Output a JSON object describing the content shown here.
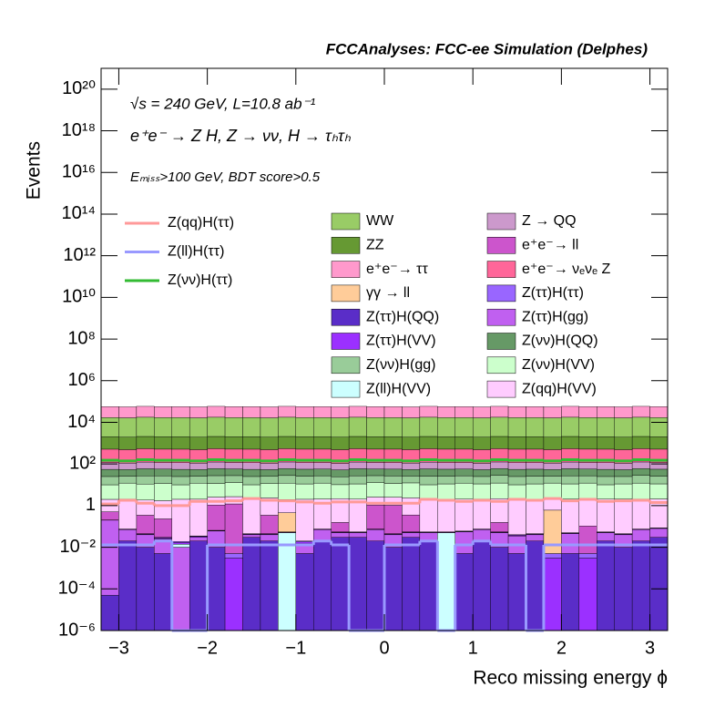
{
  "chart_data": {
    "type": "stacked_histogram",
    "title": "FCCAnalyses: FCC-ee Simulation (Delphes)",
    "annotations": [
      "√s = 240 GeV, L=10.8 ab⁻¹",
      "e⁺e⁻ → Z H, Z → νν, H → τₕτₕ",
      "Eₘᵢₛₛ>100 GeV, BDT score>0.5"
    ],
    "xlabel": "Reco missing energy ϕ",
    "ylabel": "Events",
    "log_y": true,
    "xlim": [
      -3.2,
      3.2
    ],
    "ylim": [
      1e-06,
      1e+21
    ],
    "xticks": [
      {
        "value": -3,
        "label": "−3"
      },
      {
        "value": -2,
        "label": "−2"
      },
      {
        "value": -1,
        "label": "−1"
      },
      0,
      1,
      2,
      3
    ],
    "yticks": [
      {
        "value": 1e-06,
        "label": "10⁻⁶"
      },
      {
        "value": 0.0001,
        "label": "10⁻⁴"
      },
      {
        "value": 0.01,
        "label": "10⁻²"
      },
      1,
      {
        "value": 100.0,
        "label": "10²"
      },
      {
        "value": 10000.0,
        "label": "10⁴"
      },
      {
        "value": 1000000.0,
        "label": "10⁶"
      },
      {
        "value": 100000000.0,
        "label": "10⁸"
      },
      {
        "value": 10000000000.0,
        "label": "10¹⁰"
      },
      {
        "value": 1000000000000.0,
        "label": "10¹²"
      },
      {
        "value": 100000000000000.0,
        "label": "10¹⁴"
      },
      {
        "value": 1e+16,
        "label": "10¹⁶"
      },
      {
        "value": 1e+18,
        "label": "10¹⁸"
      },
      {
        "value": 1e+20,
        "label": "10²⁰"
      }
    ],
    "bins": [
      -3.2,
      -3.0,
      -2.8,
      -2.6,
      -2.4,
      -2.2,
      -2.0,
      -1.8,
      -1.6,
      -1.4,
      -1.2,
      -1.0,
      -0.8,
      -0.6,
      -0.4,
      -0.2,
      0,
      0.2,
      0.4,
      0.6,
      0.8,
      1.0,
      1.2,
      1.4,
      1.6,
      1.8,
      2.0,
      2.2,
      2.4,
      2.6,
      2.8,
      3.0,
      3.2
    ],
    "series": [
      {
        "name": "Z(ττ)H(QQ)",
        "color": "#5a2dc8",
        "values": [
          5e-05,
          0.02,
          0.01,
          0.005,
          0,
          0.02,
          0.01,
          0,
          0.03,
          0.02,
          0,
          0.005,
          0.02,
          0.03,
          0.03,
          0.02,
          0.01,
          0.03,
          0.02,
          0,
          0.005,
          0.02,
          0.01,
          0.005,
          0.02,
          0,
          0.005,
          0,
          0.02,
          0.01,
          0.02,
          0.03
        ]
      },
      {
        "name": "Z(ττ)H(gg)",
        "color": "#c060f0",
        "values": [
          0.2,
          0.05,
          0.03,
          0.02,
          0.01,
          0.01,
          0.05,
          0,
          0.01,
          0.02,
          0,
          0.01,
          0.05,
          0.02,
          0.02,
          0.05,
          0.03,
          0.02,
          0.03,
          0,
          0.05,
          0.05,
          0.04,
          0.03,
          0.02,
          0,
          0.04,
          0,
          0.03,
          0.03,
          0.05,
          0.05
        ]
      },
      {
        "name": "Z(ll)H(VV)",
        "color": "#ccffff",
        "values": [
          0,
          0,
          0,
          0,
          0.004,
          0,
          0,
          0,
          0,
          0,
          0.05,
          0,
          0,
          0,
          0,
          0,
          0,
          0,
          0,
          0.05,
          0,
          0,
          0,
          0,
          0,
          0,
          0,
          0,
          0,
          0,
          0,
          0
        ]
      },
      {
        "name": "Z(ττ)H(VV)",
        "color": "#9b30ff",
        "values": [
          0.003,
          0.003,
          0.003,
          0.003,
          0.003,
          0.003,
          0.003,
          0.003,
          0.003,
          0.003,
          0.003,
          0.003,
          0.003,
          0.003,
          0.003,
          0.003,
          0.003,
          0.003,
          0.003,
          0.003,
          0.003,
          0.003,
          0.003,
          0.003,
          0.003,
          0.003,
          0.003,
          0.003,
          0.003,
          0.003,
          0.003,
          0.003
        ]
      },
      {
        "name": "Z(ττ)H(ττ)",
        "color": "#9966ff",
        "values": [
          0.002,
          0.002,
          0.002,
          0.002,
          0.002,
          0.002,
          0.002,
          0.002,
          0.002,
          0.002,
          0.002,
          0.002,
          0.002,
          0.002,
          0.002,
          0.002,
          0.002,
          0.002,
          0.002,
          0.002,
          0.002,
          0.002,
          0.002,
          0.002,
          0.002,
          0.002,
          0.002,
          0.002,
          0.002,
          0.002,
          0.002,
          0.002
        ]
      },
      {
        "name": "γγ → ll",
        "color": "#ffcc99",
        "values": [
          0,
          0,
          0,
          0,
          0,
          0,
          0,
          0,
          0,
          0,
          0.4,
          0,
          0,
          0,
          0,
          0,
          0,
          0,
          0,
          0,
          0,
          0,
          0,
          0,
          0,
          0.6,
          0,
          0,
          0,
          0,
          0,
          0
        ]
      },
      {
        "name": "e⁺e⁻→ ll",
        "color": "#cc55cc",
        "values": [
          0.3,
          0,
          0.3,
          0.2,
          0,
          0,
          1,
          1.2,
          0,
          0.3,
          0,
          0,
          0,
          0.1,
          0,
          1,
          1,
          0.3,
          0,
          0,
          0,
          0,
          0.1,
          0,
          0,
          0,
          0,
          0.1,
          0,
          0,
          0,
          0
        ]
      },
      {
        "name": "Z(qq)H(VV)",
        "color": "#ffccff",
        "values": [
          1.5,
          2,
          1.5,
          1.5,
          2,
          2,
          1.5,
          1.5,
          2,
          2,
          1.5,
          2,
          2,
          2,
          2,
          1.5,
          1.5,
          2,
          2,
          2,
          2,
          2,
          2,
          2,
          2,
          1.5,
          2,
          2,
          2,
          2,
          2,
          2
        ]
      },
      {
        "name": "Z(νν)H(VV)",
        "color": "#ccffcc",
        "values": [
          8,
          10,
          9,
          10,
          8,
          10,
          9,
          10,
          8,
          9,
          10,
          9,
          10,
          8,
          9,
          10,
          9,
          10,
          8,
          9,
          10,
          9,
          10,
          8,
          9,
          10,
          9,
          10,
          8,
          9,
          10,
          9
        ]
      },
      {
        "name": "Z(νν)H(gg)",
        "color": "#99cc99",
        "values": [
          15,
          14,
          16,
          15,
          15,
          14,
          16,
          15,
          15,
          14,
          16,
          15,
          15,
          14,
          16,
          15,
          15,
          14,
          16,
          15,
          15,
          14,
          16,
          15,
          15,
          14,
          16,
          15,
          15,
          14,
          16,
          15
        ]
      },
      {
        "name": "Z(νν)H(QQ)",
        "color": "#669966",
        "values": [
          30,
          28,
          32,
          30,
          30,
          28,
          32,
          30,
          30,
          28,
          32,
          30,
          30,
          28,
          32,
          30,
          30,
          28,
          32,
          30,
          30,
          28,
          32,
          30,
          30,
          28,
          32,
          30,
          30,
          28,
          32,
          30
        ]
      },
      {
        "name": "Z → QQ",
        "color": "#cc99cc",
        "values": [
          60,
          55,
          65,
          60,
          60,
          55,
          65,
          60,
          60,
          55,
          65,
          60,
          60,
          55,
          65,
          60,
          60,
          55,
          65,
          60,
          60,
          55,
          65,
          60,
          60,
          55,
          65,
          60,
          60,
          55,
          65,
          60
        ]
      },
      {
        "name": "e⁺e⁻→ νₑνₑ Z",
        "color": "#ff6699",
        "values": [
          400,
          380,
          420,
          400,
          400,
          380,
          420,
          400,
          400,
          380,
          420,
          400,
          400,
          380,
          420,
          400,
          400,
          380,
          420,
          400,
          400,
          380,
          420,
          400,
          400,
          380,
          420,
          400,
          400,
          380,
          420,
          400
        ]
      },
      {
        "name": "ZZ",
        "color": "#669933",
        "values": [
          1500,
          1450,
          1550,
          1500,
          1500,
          1450,
          1550,
          1500,
          1500,
          1450,
          1550,
          1500,
          1500,
          1450,
          1550,
          1500,
          1500,
          1450,
          1550,
          1500,
          1500,
          1450,
          1550,
          1500,
          1500,
          1450,
          1550,
          1500,
          1500,
          1450,
          1550,
          1500
        ]
      },
      {
        "name": "WW",
        "color": "#99cc66",
        "values": [
          15000,
          14500,
          15500,
          15000,
          15000,
          14500,
          15500,
          15000,
          15000,
          14500,
          15500,
          15000,
          15000,
          14500,
          15500,
          15000,
          15000,
          14500,
          15500,
          15000,
          15000,
          14500,
          15500,
          15000,
          15000,
          14500,
          15500,
          15000,
          15000,
          14500,
          15500,
          15000
        ]
      },
      {
        "name": "e⁺e⁻→ ττ",
        "color": "#ff99cc",
        "values": [
          40000,
          39000,
          41000,
          40000,
          40000,
          39000,
          41000,
          40000,
          40000,
          39000,
          41000,
          40000,
          40000,
          39000,
          41000,
          40000,
          40000,
          39000,
          41000,
          40000,
          40000,
          39000,
          41000,
          40000,
          40000,
          39000,
          41000,
          40000,
          40000,
          39000,
          41000,
          40000
        ]
      }
    ],
    "signal_series": [
      {
        "name": "Z(qq)H(ττ)",
        "color": "#ff9999",
        "values": [
          1.2,
          1.8,
          1.3,
          1.0,
          1.0,
          1.6,
          1.6,
          1.7,
          2.2,
          1.8,
          1.7,
          1.5,
          1.3,
          1.5,
          1.5,
          1.3,
          1.3,
          1.3,
          2.0,
          1.8,
          1.6,
          1.8,
          1.6,
          2.0,
          1.8,
          2.2,
          1.7,
          2.0,
          1.6,
          1.7,
          1.8,
          1.4
        ]
      },
      {
        "name": "Z(ll)H(ττ)",
        "color": "#9999ff",
        "values": [
          0.013,
          0.013,
          0.013,
          0.02,
          0,
          0,
          0.013,
          0.013,
          0.013,
          0.013,
          0.013,
          0.013,
          0.02,
          0.013,
          0,
          0,
          0.013,
          0.013,
          0.02,
          0,
          0.013,
          0.02,
          0.013,
          0.013,
          0,
          0.013,
          0.013,
          0.013,
          0.013,
          0.013,
          0.013,
          0.013
        ]
      },
      {
        "name": "Z(νν)H(ττ)",
        "color": "#33bb33",
        "values": [
          150,
          140,
          160,
          150,
          150,
          140,
          160,
          150,
          150,
          140,
          160,
          150,
          150,
          140,
          160,
          150,
          150,
          140,
          160,
          150,
          150,
          140,
          160,
          150,
          150,
          140,
          160,
          150,
          150,
          140,
          160,
          150
        ]
      }
    ]
  }
}
